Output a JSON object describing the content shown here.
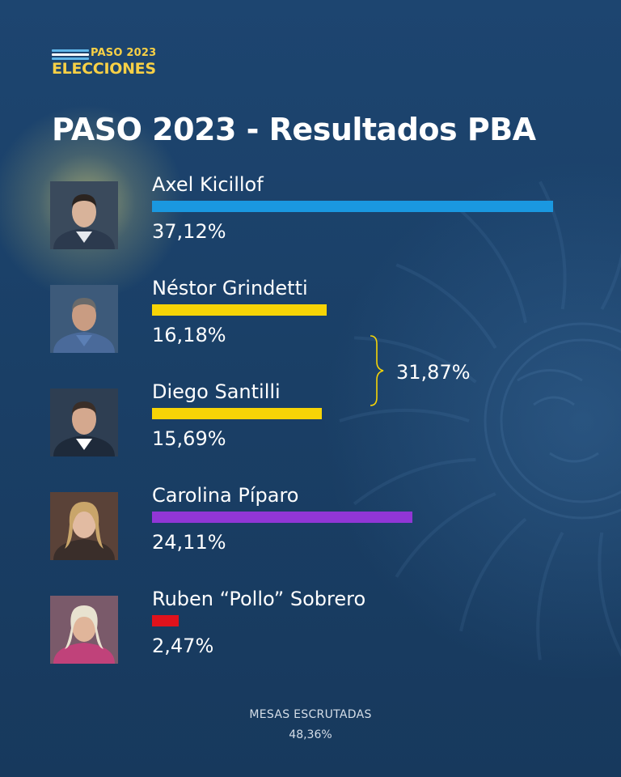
{
  "logo": {
    "paso": "PASO 2023",
    "elecciones": "ELECCIONES"
  },
  "title": "PASO 2023 - Resultados PBA",
  "chart_data": {
    "type": "bar",
    "title": "PASO 2023 - Resultados PBA",
    "max_value": 37.12,
    "series": [
      {
        "name": "Axel Kicillof",
        "value": 37.12,
        "label": "37,12%",
        "color": "#1a98e0",
        "avatar": "person-photo-kicillof"
      },
      {
        "name": "Néstor Grindetti",
        "value": 16.18,
        "label": "16,18%",
        "color": "#f6d406",
        "avatar": "person-photo-grindetti"
      },
      {
        "name": "Diego Santilli",
        "value": 15.69,
        "label": "15,69%",
        "color": "#f6d406",
        "avatar": "person-photo-santilli"
      },
      {
        "name": "Carolina Píparo",
        "value": 24.11,
        "label": "24,11%",
        "color": "#9136d6",
        "avatar": "person-photo-piparo"
      },
      {
        "name": "Ruben “Pollo” Sobrero",
        "value": 2.47,
        "label": "2,47%",
        "color": "#e0121c",
        "avatar": "person-photo-sobrero"
      }
    ],
    "annotations": [
      {
        "groups": [
          "Néstor Grindetti",
          "Diego Santilli"
        ],
        "value": 31.87,
        "label": "31,87%"
      }
    ]
  },
  "footer": {
    "label": "MESAS ESCRUTADAS",
    "value": "48,36%"
  }
}
